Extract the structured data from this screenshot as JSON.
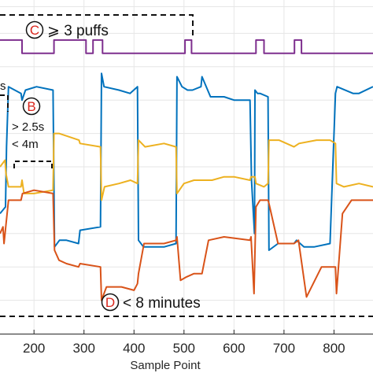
{
  "chart_data": {
    "type": "line",
    "title": "",
    "xlabel": "Sample Point",
    "ylabel": "",
    "xlim": [
      132,
      878
    ],
    "xticks": [
      200,
      300,
      400,
      500,
      600,
      700,
      800
    ],
    "ylim": [
      0,
      100
    ],
    "grid": true,
    "legend": "none",
    "colors": {
      "purple": "#7e2f8e",
      "blue": "#0072bd",
      "yellow": "#edb120",
      "orange": "#d95319",
      "grid": "#e6e6e6",
      "annotation_letter": "#d9251c"
    },
    "series": [
      {
        "color": "purple",
        "x": [
          132,
          176,
          176,
          240,
          240,
          304,
          304,
          318,
          318,
          337,
          337,
          502,
          502,
          515,
          515,
          644,
          644,
          660,
          660,
          721,
          721,
          735,
          735,
          878
        ],
        "y": [
          88,
          88,
          84,
          84,
          88,
          88,
          84,
          84,
          88,
          88,
          84,
          84,
          88,
          88,
          84,
          84,
          88,
          88,
          84,
          84,
          88,
          88,
          84,
          84
        ]
      },
      {
        "color": "blue",
        "x": [
          132,
          143,
          145,
          149,
          174,
          176,
          183,
          205,
          238,
          241,
          251,
          265,
          289,
          292,
          333,
          335,
          340,
          370,
          392,
          407,
          409,
          419,
          460,
          484,
          486,
          496,
          507,
          517,
          534,
          536,
          553,
          580,
          600,
          632,
          635,
          641,
          642,
          647,
          652,
          668,
          670,
          688,
          720,
          725,
          740,
          760,
          792,
          803,
          806,
          838,
          850,
          878
        ],
        "y": [
          36,
          38,
          56,
          74,
          72,
          70,
          73,
          74,
          73,
          26,
          28,
          28,
          27,
          31,
          32,
          78,
          74,
          73,
          72,
          74,
          28,
          26,
          26,
          27,
          77,
          74,
          73,
          73,
          74,
          77,
          71,
          71,
          70,
          70,
          46,
          30,
          73,
          72,
          72,
          71,
          25,
          27,
          27,
          28,
          26,
          26,
          27,
          72,
          74,
          72,
          72,
          74
        ]
      },
      {
        "color": "yellow",
        "x": [
          132,
          142,
          144,
          149,
          174,
          176,
          180,
          200,
          238,
          240,
          250,
          270,
          290,
          292,
          333,
          335,
          341,
          370,
          393,
          407,
          409,
          422,
          460,
          484,
          486,
          500,
          520,
          534,
          536,
          556,
          580,
          600,
          632,
          634,
          642,
          644,
          660,
          668,
          670,
          690,
          720,
          730,
          765,
          792,
          803,
          805,
          820,
          850,
          878
        ],
        "y": [
          50,
          52,
          48,
          44,
          44,
          46,
          42,
          42,
          43,
          60,
          60,
          59,
          58,
          57,
          56,
          40,
          44,
          45,
          46,
          45,
          58,
          56,
          57,
          56,
          42,
          45,
          46,
          46,
          46,
          46,
          47,
          47,
          46,
          47,
          47,
          45,
          44,
          45,
          58,
          58,
          56,
          57,
          58,
          58,
          57,
          45,
          44,
          45,
          44
        ]
      },
      {
        "color": "orange",
        "x": [
          132,
          138,
          140,
          149,
          174,
          177,
          200,
          238,
          241,
          250,
          265,
          289,
          292,
          333,
          335,
          345,
          375,
          400,
          407,
          409,
          420,
          460,
          484,
          486,
          493,
          505,
          520,
          534,
          536,
          549,
          580,
          632,
          634,
          640,
          644,
          652,
          668,
          670,
          688,
          720,
          729,
          745,
          775,
          795,
          803,
          805,
          817,
          835,
          878
        ],
        "y": [
          30,
          32,
          27,
          40,
          40,
          42,
          43,
          42,
          25,
          22,
          21,
          20,
          21,
          20,
          10,
          14,
          14,
          13,
          15,
          18,
          27,
          27,
          28,
          29,
          16,
          17,
          18,
          18,
          18,
          28,
          29,
          28,
          29,
          12,
          38,
          40,
          40,
          39,
          27,
          27,
          28,
          11,
          20,
          20,
          20,
          12,
          36,
          40,
          40
        ]
      }
    ],
    "annotations": {
      "c": {
        "letter": "C",
        "text": "⩾ 3 puffs"
      },
      "b": {
        "letter": "B",
        "line1": "> 2.5s",
        "line2": "< 4m"
      },
      "s": {
        "text": "s"
      },
      "d": {
        "letter": "D",
        "text": "< 8 minutes"
      }
    }
  }
}
